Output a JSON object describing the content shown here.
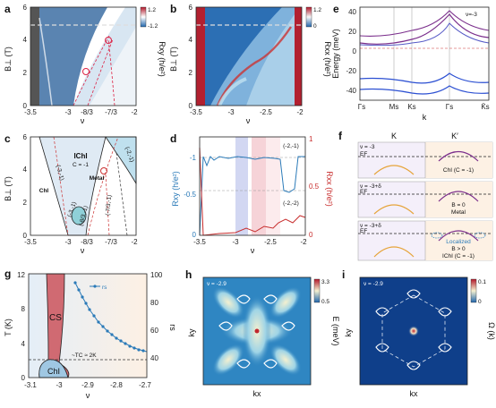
{
  "panels": {
    "a": {
      "label": "a",
      "ylabel": "B⊥ (T)",
      "xlabel": "ν",
      "xticks": [
        "-3.5",
        "-3",
        "-8/3",
        "-7/3",
        "-2"
      ],
      "yticks": [
        "0",
        "2",
        "4",
        "6"
      ],
      "colorbar": {
        "label": "Rxy (h/e²)",
        "max": "1.2",
        "min": "-1.2"
      }
    },
    "b": {
      "label": "b",
      "ylabel": "B⊥ (T)",
      "xlabel": "ν",
      "xticks": [
        "-3.5",
        "-3",
        "-2.5",
        "-2"
      ],
      "yticks": [
        "0",
        "2",
        "4",
        "6"
      ],
      "colorbar": {
        "label": "Rxx (h/e²)",
        "max": "1.2",
        "min": "0"
      }
    },
    "c": {
      "label": "c",
      "ylabel": "B⊥ (T)",
      "xlabel": "ν",
      "xticks": [
        "-3.5",
        "-3",
        "-8/3",
        "-7/3",
        "-2"
      ],
      "yticks": [
        "0",
        "2",
        "4",
        "6"
      ],
      "regions": {
        "ichi": "IChI",
        "ichi_c": "C = -1",
        "chi": "ChI",
        "metal": "Metal"
      },
      "fans": [
        "(-3,-1)",
        "(-2,-1)",
        "(-3,-1)",
        "(-8/3,-1)",
        "(-7/3,-1)"
      ]
    },
    "d": {
      "label": "d",
      "xlabel": "ν",
      "ylabel_left": "Rxy (h/e²)",
      "ylabel_right": "Rxx (h/e²)",
      "xticks": [
        "-3.5",
        "-3",
        "-2.5",
        "-2"
      ],
      "yticks_left": [
        "-1",
        "-0.5",
        "0"
      ],
      "yticks_right": [
        "1",
        "0.5",
        "0"
      ],
      "annotations": [
        "(-2,-1)",
        "(-2,-2)"
      ]
    },
    "e": {
      "label": "e",
      "ylabel": "Energy (meV)",
      "xlabel": "k",
      "filling": "ν=-3",
      "yticks": [
        "40",
        "20",
        "0",
        "-20",
        "-40"
      ],
      "kpoints": [
        "Γs",
        "Ms",
        "Ks",
        "Γs",
        "K̄s"
      ]
    },
    "f": {
      "label": "f",
      "valleys": [
        "K",
        "K′"
      ],
      "rows": [
        {
          "nu": "ν = -3",
          "ef": "EF",
          "note": "ChI (C = -1)"
        },
        {
          "nu": "ν = -3+δ",
          "ef": "EF",
          "note1": "B = 0",
          "note2": "Metal"
        },
        {
          "nu": "ν = -3+δ",
          "ef": "EF",
          "note0": "Localized",
          "note1": "B > 0",
          "note2": "IChI (C = -1)"
        }
      ]
    },
    "g": {
      "label": "g",
      "ylabel": "T (K)",
      "xlabel": "ν",
      "ylabel_right": "rs",
      "xticks": [
        "-3.1",
        "-3",
        "-2.9",
        "-2.8",
        "-2.7"
      ],
      "yticks": [
        "0",
        "4",
        "8",
        "12"
      ],
      "yticks_right": [
        "40",
        "60",
        "80",
        "100"
      ],
      "cs": "CS",
      "chi": "ChI",
      "tc": "~TC ≈ 2K",
      "legend": "rs"
    },
    "h": {
      "label": "h",
      "filling": "ν = -2.9",
      "xlabel": "kx",
      "ylabel": "ky",
      "colorbar": {
        "label": "E (meV)",
        "max": "3.3",
        "min": "0.5"
      }
    },
    "i": {
      "label": "i",
      "filling": "ν = -2.9",
      "xlabel": "kx",
      "ylabel": "ky",
      "colorbar": {
        "label": "Ω (k)",
        "max": "0.1",
        "min": "0"
      }
    }
  },
  "colors": {
    "blue": "#2a6fb0",
    "red": "#c8323a",
    "pink": "#e6a2a6",
    "lightblue": "#c9e2f0",
    "cs": "#d06a72"
  }
}
